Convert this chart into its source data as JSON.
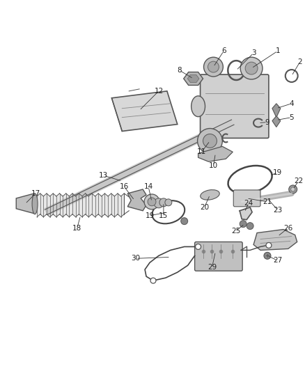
{
  "background_color": "#ffffff",
  "line_color": "#333333",
  "label_color": "#222222",
  "label_fontsize": 7.5,
  "parts_layout": "gearshift_cable_diagram"
}
